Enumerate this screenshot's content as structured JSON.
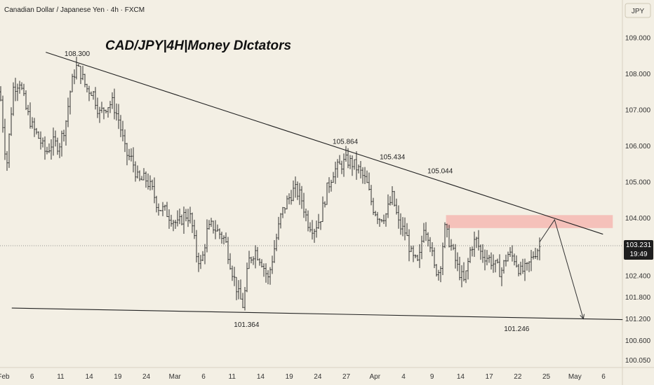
{
  "header": {
    "symbol_info": "Canadian Dollar / Japanese Yen · 4h · FXCM",
    "currency_button": "JPY"
  },
  "colors": {
    "background": "#f3efe4",
    "candle": "#1a1a1a",
    "trendline": "#222222",
    "zone": "#f4b9b3",
    "price_badge": "#1e1e1e",
    "price_badge_text": "#ffffff"
  },
  "chart_data": {
    "type": "candlestick",
    "title": "CAD/JPY|4H|Money DIctators",
    "y_axis": {
      "ylim": [
        99.85,
        110.05
      ],
      "ticks": [
        "109.000",
        "108.000",
        "107.000",
        "106.000",
        "105.000",
        "104.000",
        "102.400",
        "101.800",
        "101.200",
        "100.600",
        "100.050"
      ]
    },
    "x_axis": {
      "tick_labels": [
        "Feb",
        "6",
        "11",
        "14",
        "19",
        "24",
        "Mar",
        "6",
        "11",
        "14",
        "19",
        "24",
        "27",
        "Apr",
        "4",
        "9",
        "14",
        "17",
        "22",
        "25",
        "May",
        "6"
      ]
    },
    "current_price": {
      "value": "103.231",
      "countdown": "19:49"
    },
    "annotations": [
      {
        "label": "108.300",
        "price": 108.3
      },
      {
        "label": "105.864",
        "price": 105.864
      },
      {
        "label": "105.434",
        "price": 105.434
      },
      {
        "label": "105.044",
        "price": 105.044
      },
      {
        "label": "101.364",
        "price": 101.364
      },
      {
        "label": "101.246",
        "price": 101.246
      }
    ],
    "resistance_zone": {
      "low": 103.72,
      "high": 104.08
    },
    "trendlines": [
      {
        "name": "upper",
        "from": {
          "x": 0.07,
          "y": 108.6
        },
        "to": {
          "x": 0.922,
          "y": 103.55
        }
      },
      {
        "name": "lower",
        "from": {
          "x": 0.018,
          "y": 101.5
        },
        "to": {
          "x": 0.952,
          "y": 101.18
        }
      }
    ],
    "projection": [
      {
        "x": 0.825,
        "y": 103.33
      },
      {
        "x": 0.848,
        "y": 103.95
      },
      {
        "x": 0.892,
        "y": 101.2
      }
    ],
    "path_anchors": [
      [
        0.0,
        107.5
      ],
      [
        0.01,
        105.4
      ],
      [
        0.02,
        107.6
      ],
      [
        0.03,
        107.8
      ],
      [
        0.04,
        107.0
      ],
      [
        0.05,
        106.5
      ],
      [
        0.06,
        106.2
      ],
      [
        0.07,
        105.8
      ],
      [
        0.08,
        106.1
      ],
      [
        0.09,
        106.0
      ],
      [
        0.1,
        106.6
      ],
      [
        0.108,
        107.6
      ],
      [
        0.116,
        108.2
      ],
      [
        0.124,
        108.0
      ],
      [
        0.132,
        107.6
      ],
      [
        0.142,
        107.5
      ],
      [
        0.152,
        106.9
      ],
      [
        0.162,
        107.1
      ],
      [
        0.172,
        107.2
      ],
      [
        0.182,
        106.7
      ],
      [
        0.192,
        105.8
      ],
      [
        0.202,
        105.6
      ],
      [
        0.212,
        105.0
      ],
      [
        0.222,
        105.1
      ],
      [
        0.232,
        104.8
      ],
      [
        0.242,
        104.3
      ],
      [
        0.252,
        104.2
      ],
      [
        0.262,
        104.0
      ],
      [
        0.272,
        103.8
      ],
      [
        0.282,
        104.1
      ],
      [
        0.292,
        104.0
      ],
      [
        0.3,
        103.0
      ],
      [
        0.308,
        102.7
      ],
      [
        0.316,
        103.6
      ],
      [
        0.324,
        103.8
      ],
      [
        0.334,
        103.6
      ],
      [
        0.344,
        103.4
      ],
      [
        0.354,
        102.6
      ],
      [
        0.364,
        101.9
      ],
      [
        0.372,
        101.55
      ],
      [
        0.38,
        102.8
      ],
      [
        0.39,
        103.1
      ],
      [
        0.4,
        102.8
      ],
      [
        0.41,
        102.3
      ],
      [
        0.42,
        103.2
      ],
      [
        0.43,
        104.1
      ],
      [
        0.44,
        104.5
      ],
      [
        0.45,
        104.8
      ],
      [
        0.46,
        104.6
      ],
      [
        0.47,
        103.9
      ],
      [
        0.48,
        103.7
      ],
      [
        0.49,
        104.0
      ],
      [
        0.5,
        104.8
      ],
      [
        0.51,
        105.3
      ],
      [
        0.52,
        105.45
      ],
      [
        0.53,
        105.6
      ],
      [
        0.54,
        105.5
      ],
      [
        0.55,
        105.3
      ],
      [
        0.56,
        105.0
      ],
      [
        0.57,
        104.3
      ],
      [
        0.58,
        104.0
      ],
      [
        0.59,
        104.1
      ],
      [
        0.6,
        104.6
      ],
      [
        0.61,
        103.8
      ],
      [
        0.62,
        103.6
      ],
      [
        0.63,
        102.9
      ],
      [
        0.64,
        102.7
      ],
      [
        0.648,
        103.8
      ],
      [
        0.656,
        103.5
      ],
      [
        0.664,
        102.6
      ],
      [
        0.672,
        102.5
      ],
      [
        0.68,
        103.7
      ],
      [
        0.69,
        103.2
      ],
      [
        0.7,
        102.6
      ],
      [
        0.71,
        102.2
      ],
      [
        0.72,
        103.2
      ],
      [
        0.728,
        103.4
      ],
      [
        0.736,
        103.0
      ],
      [
        0.746,
        102.9
      ],
      [
        0.756,
        102.7
      ],
      [
        0.766,
        102.5
      ],
      [
        0.776,
        103.0
      ],
      [
        0.786,
        102.9
      ],
      [
        0.796,
        102.5
      ],
      [
        0.806,
        102.6
      ],
      [
        0.816,
        103.0
      ],
      [
        0.824,
        103.2
      ]
    ]
  }
}
